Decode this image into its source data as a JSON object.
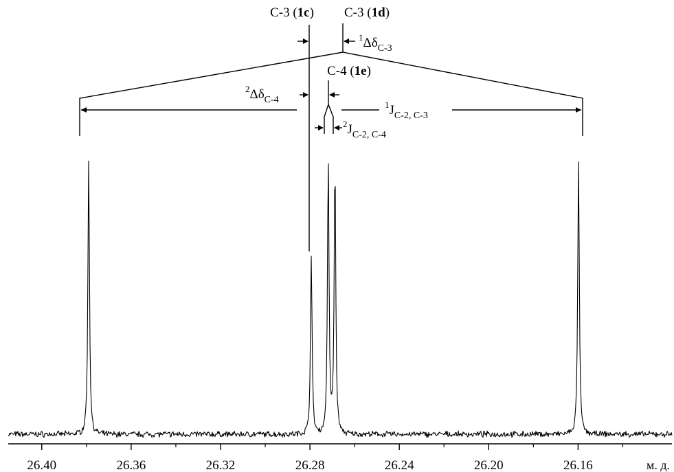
{
  "chart_data": {
    "type": "line",
    "x_unit_label": "м. д.",
    "x_reversed": true,
    "xlim": [
      26.415,
      26.118
    ],
    "ylim": [
      0,
      1
    ],
    "x_ticks": [
      "26.40",
      "26.36",
      "26.32",
      "26.28",
      "26.24",
      "26.20",
      "26.16"
    ],
    "x_tick_values": [
      26.4,
      26.36,
      26.32,
      26.28,
      26.24,
      26.2,
      26.16
    ],
    "grid": false,
    "baseline": 0.0,
    "peaks": [
      {
        "x": 26.379,
        "height": 0.96
      },
      {
        "x": 26.2794,
        "height": 0.63
      },
      {
        "x": 26.2718,
        "height": 0.96
      },
      {
        "x": 26.2688,
        "height": 0.96
      },
      {
        "x": 26.1598,
        "height": 0.96
      }
    ],
    "annotations": {
      "c3_1c": {
        "prefix": "C-3 (",
        "bold": "1c",
        "suffix": ")",
        "x": 26.2794
      },
      "c3_1d": {
        "prefix": "C-3 (",
        "bold": "1d",
        "suffix": ")",
        "x": 26.2694
      },
      "c4_1e": {
        "prefix": "C-4 (",
        "bold": "1e",
        "suffix": ")",
        "x": 26.2703
      },
      "delta1_c3": {
        "sup": "1",
        "main": "Δδ",
        "sub": "C-3"
      },
      "delta2_c4": {
        "sup": "2",
        "main": "Δδ",
        "sub": "C-4"
      },
      "j1_c2c3": {
        "sup": "1",
        "main": "J",
        "sub": "C-2, C-3"
      },
      "j2_c2c4": {
        "sup": "2",
        "main": "J",
        "sub": "C-2, C-4"
      }
    }
  }
}
